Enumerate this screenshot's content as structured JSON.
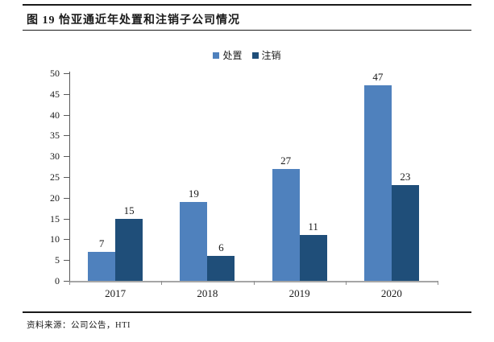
{
  "page": {
    "title": "图 19 怡亚通近年处置和注销子公司情况",
    "source": "资料来源：公司公告，HTI"
  },
  "chart_data": {
    "type": "bar",
    "title": "图 19 怡亚通近年处置和注销子公司情况",
    "categories": [
      "2017",
      "2018",
      "2019",
      "2020"
    ],
    "series": [
      {
        "name": "处置",
        "color": "#4F81BD",
        "values": [
          7,
          19,
          27,
          47
        ]
      },
      {
        "name": "注销",
        "color": "#1F4E79",
        "values": [
          15,
          6,
          11,
          23
        ]
      }
    ],
    "xlabel": "",
    "ylabel": "",
    "ylim": [
      0,
      50
    ],
    "yticks": [
      0,
      5,
      10,
      15,
      20,
      25,
      30,
      35,
      40,
      45,
      50
    ],
    "grid": false,
    "legend_position": "top-center",
    "data_labels": true,
    "colors": {
      "axis": "#595959",
      "baseline": "#a6a6a6",
      "text": "#1a1a1a"
    }
  }
}
